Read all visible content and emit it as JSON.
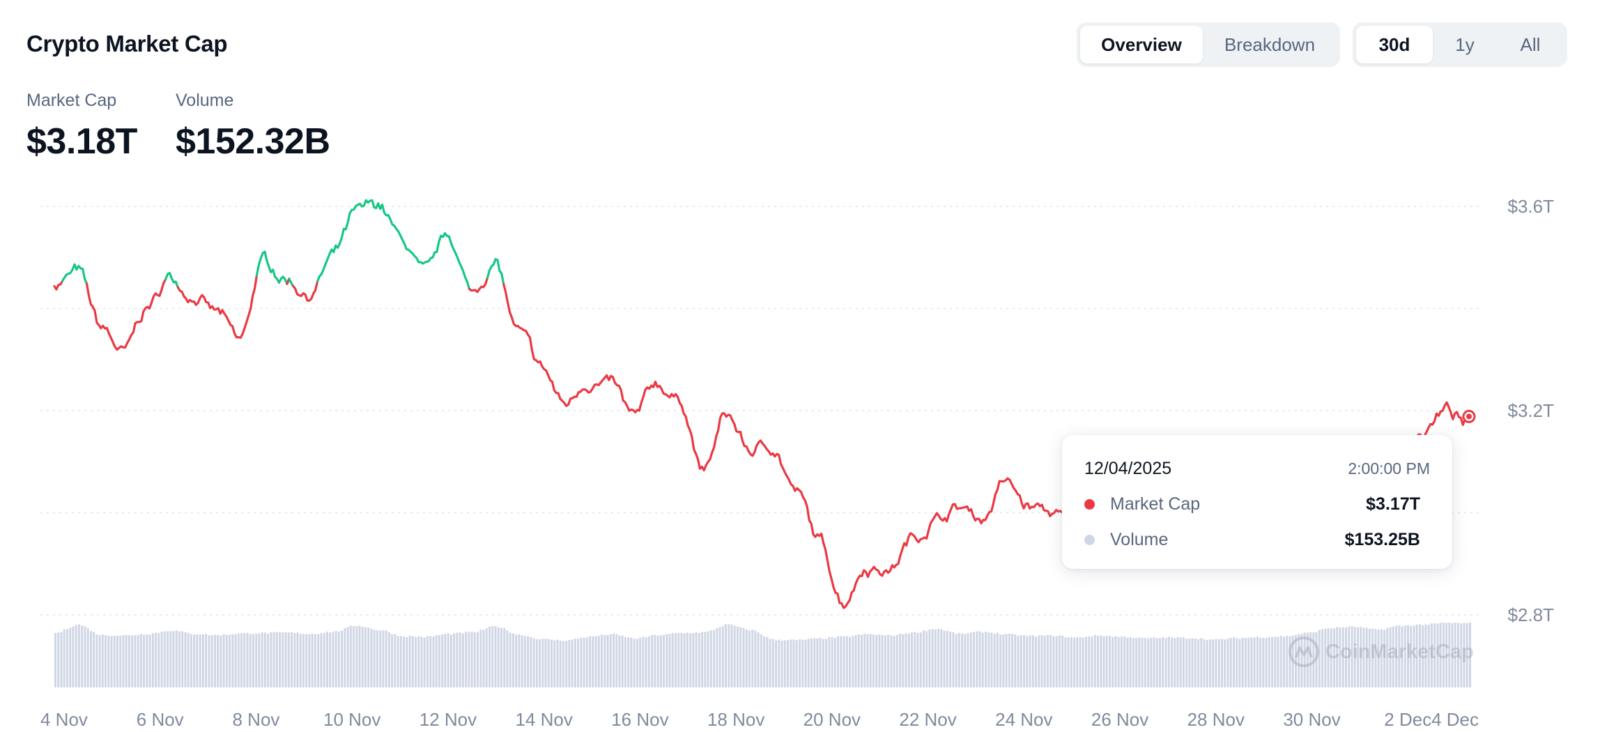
{
  "header": {
    "title": "Crypto Market Cap",
    "view_tabs": [
      {
        "label": "Overview",
        "active": true
      },
      {
        "label": "Breakdown",
        "active": false
      }
    ],
    "range_tabs": [
      {
        "label": "30d",
        "active": true
      },
      {
        "label": "1y",
        "active": false
      },
      {
        "label": "All",
        "active": false
      }
    ]
  },
  "stats": {
    "market_cap": {
      "label": "Market Cap",
      "value": "$3.18T"
    },
    "volume": {
      "label": "Volume",
      "value": "$152.32B"
    }
  },
  "tooltip": {
    "date": "12/04/2025",
    "time": "2:00:00 PM",
    "rows": [
      {
        "name": "Market Cap",
        "value": "$3.17T",
        "color": "#ea3943"
      },
      {
        "name": "Volume",
        "value": "$153.25B",
        "color": "#cfd6e4"
      }
    ]
  },
  "watermark": {
    "text": "CoinMarketCap"
  },
  "colors": {
    "up": "#16c784",
    "down": "#ea3943",
    "volume": "#cfd6e4",
    "grid": "#dfe3ea"
  },
  "chart_data": {
    "type": "line",
    "x_tick_labels": [
      "4 Nov",
      "6 Nov",
      "8 Nov",
      "10 Nov",
      "12 Nov",
      "14 Nov",
      "16 Nov",
      "18 Nov",
      "20 Nov",
      "22 Nov",
      "24 Nov",
      "26 Nov",
      "28 Nov",
      "30 Nov",
      "2 Dec",
      "4 Dec"
    ],
    "y_tick_labels": [
      "$3.6T",
      "$3.2T",
      "$2.8T"
    ],
    "y_ticks": [
      3.6,
      3.2,
      2.8
    ],
    "ylim": [
      2.8,
      3.6
    ],
    "baseline": 3.45,
    "grid": true,
    "series": [
      {
        "name": "Market Cap",
        "unit": "T USD",
        "x": [
          "11/04",
          "11/04",
          "11/05",
          "11/05",
          "11/06",
          "11/06",
          "11/07",
          "11/07",
          "11/08",
          "11/08",
          "11/09",
          "11/09",
          "11/10",
          "11/10",
          "11/11",
          "11/11",
          "11/12",
          "11/12",
          "11/13",
          "11/13",
          "11/14",
          "11/14",
          "11/15",
          "11/15",
          "11/16",
          "11/16",
          "11/17",
          "11/17",
          "11/18",
          "11/18",
          "11/19",
          "11/19",
          "11/20",
          "11/20",
          "11/21",
          "11/21",
          "11/22",
          "11/22",
          "11/23",
          "11/23",
          "11/24",
          "11/24",
          "11/25",
          "11/25",
          "11/26",
          "11/26",
          "11/27",
          "11/27",
          "11/28",
          "11/28",
          "11/29",
          "11/29",
          "11/30",
          "11/30",
          "12/01",
          "12/01",
          "12/02",
          "12/02",
          "12/03",
          "12/03",
          "12/04",
          "12/04"
        ],
        "values": [
          3.45,
          3.47,
          3.36,
          3.31,
          3.4,
          3.46,
          3.43,
          3.39,
          3.33,
          3.49,
          3.46,
          3.43,
          3.5,
          3.58,
          3.6,
          3.53,
          3.46,
          3.54,
          3.43,
          3.49,
          3.35,
          3.28,
          3.21,
          3.26,
          3.25,
          3.18,
          3.25,
          3.22,
          3.08,
          3.19,
          3.12,
          3.13,
          3.04,
          2.94,
          2.83,
          2.9,
          2.89,
          2.95,
          2.99,
          3.01,
          2.99,
          3.06,
          3.01,
          3.0,
          2.97,
          3.04,
          2.98,
          2.95,
          2.98,
          2.97,
          2.91,
          3.01,
          2.99,
          3.02,
          2.89,
          2.96,
          3.1,
          3.06,
          3.14,
          3.16,
          3.2,
          3.17
        ]
      },
      {
        "name": "Volume",
        "unit": "B USD",
        "values": [
          130,
          150,
          125,
          124,
          128,
          136,
          128,
          125,
          129,
          130,
          131,
          128,
          133,
          148,
          137,
          122,
          121,
          128,
          132,
          146,
          126,
          115,
          112,
          121,
          127,
          117,
          125,
          130,
          132,
          150,
          137,
          114,
          113,
          117,
          121,
          127,
          124,
          131,
          140,
          128,
          133,
          127,
          123,
          124,
          119,
          124,
          121,
          117,
          119,
          118,
          114,
          118,
          120,
          122,
          130,
          142,
          145,
          138,
          147,
          150,
          154,
          153
        ]
      }
    ]
  }
}
